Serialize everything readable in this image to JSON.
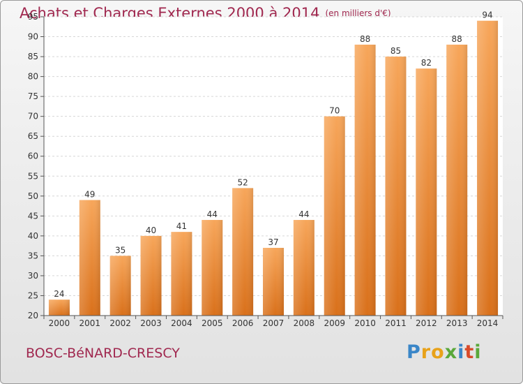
{
  "chart_data": {
    "type": "bar",
    "title": "Achats et Charges Externes 2000 à 2014",
    "subtitle": "(en milliers d'€)",
    "categories": [
      "2000",
      "2001",
      "2002",
      "2003",
      "2004",
      "2005",
      "2006",
      "2007",
      "2008",
      "2009",
      "2010",
      "2011",
      "2012",
      "2013",
      "2014"
    ],
    "values": [
      24,
      49,
      35,
      40,
      41,
      44,
      52,
      37,
      44,
      70,
      88,
      85,
      82,
      88,
      94
    ],
    "ylim": [
      20,
      95
    ],
    "yticks": [
      20,
      25,
      30,
      35,
      40,
      45,
      50,
      55,
      60,
      65,
      70,
      75,
      80,
      85,
      90,
      95
    ],
    "grid": true,
    "bar_color": "#f08a2a",
    "title_color": "#a0284f"
  },
  "footer": {
    "town": "BOSC-BéNARD-CRESCY",
    "logo_letters": [
      {
        "ch": "P",
        "color": "#3a86c8"
      },
      {
        "ch": "r",
        "color": "#e8a21a"
      },
      {
        "ch": "o",
        "color": "#e8a21a"
      },
      {
        "ch": "x",
        "color": "#5aa83a"
      },
      {
        "ch": "i",
        "color": "#3a86c8"
      },
      {
        "ch": "t",
        "color": "#d84a2a"
      },
      {
        "ch": "i",
        "color": "#5aa83a"
      }
    ]
  }
}
